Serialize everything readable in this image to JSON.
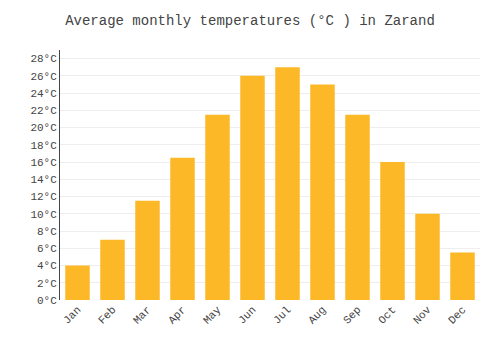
{
  "chart_data": {
    "type": "bar",
    "title": "Average monthly temperatures (°C ) in Zarand",
    "categories": [
      "Jan",
      "Feb",
      "Mar",
      "Apr",
      "May",
      "Jun",
      "Jul",
      "Aug",
      "Sep",
      "Oct",
      "Nov",
      "Dec"
    ],
    "values": [
      4.0,
      7.0,
      11.5,
      16.5,
      21.5,
      26.0,
      27.0,
      25.0,
      21.5,
      16.0,
      10.0,
      5.5
    ],
    "color": "#FDB827",
    "ylim": [
      0,
      29
    ],
    "yticks": [
      {
        "value": 0,
        "label": "0°C"
      },
      {
        "value": 2,
        "label": "2°C"
      },
      {
        "value": 4,
        "label": "4°C"
      },
      {
        "value": 6,
        "label": "6°C"
      },
      {
        "value": 8,
        "label": "8°C"
      },
      {
        "value": 10,
        "label": "10°C"
      },
      {
        "value": 12,
        "label": "12°C"
      },
      {
        "value": 14,
        "label": "14°C"
      },
      {
        "value": 16,
        "label": "16°C"
      },
      {
        "value": 18,
        "label": "18°C"
      },
      {
        "value": 20,
        "label": "20°C"
      },
      {
        "value": 22,
        "label": "22°C"
      },
      {
        "value": 24,
        "label": "24°C"
      },
      {
        "value": 26,
        "label": "26°C"
      },
      {
        "value": 28,
        "label": "28°C"
      }
    ],
    "grid": true
  }
}
